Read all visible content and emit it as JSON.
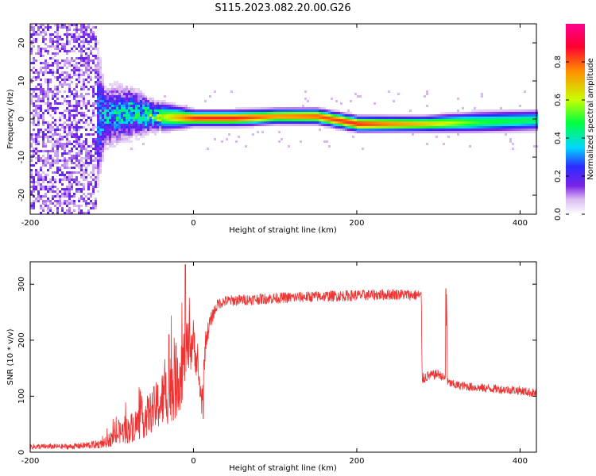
{
  "figure": {
    "title": "S115.2023.082.20.00.G26"
  },
  "chart_data": [
    {
      "type": "heatmap",
      "title": "",
      "xlabel": "Height of straight line (km)",
      "ylabel": "Frequency (Hz)",
      "xlim": [
        -200,
        420
      ],
      "ylim": [
        -25,
        25
      ],
      "xticks": [
        -200,
        0,
        200,
        400
      ],
      "yticks": [
        -20,
        -10,
        0,
        10,
        20
      ],
      "colorbar": {
        "label": "Normalized spectral amplitude",
        "range": [
          0,
          1
        ],
        "ticks": [
          "0.0",
          "0.2",
          "0.4",
          "0.6",
          "0.8"
        ],
        "colormap": "rainbow",
        "colors": [
          "#ffffff",
          "#d8b8f0",
          "#7a22e8",
          "#2c2cff",
          "#00e0ff",
          "#00ff00",
          "#e8ff00",
          "#ff8800",
          "#ff0030",
          "#ff00a0"
        ]
      },
      "description_points": [
        {
          "x": -200,
          "y_center": 0,
          "spread": 25,
          "amp": 0.2
        },
        {
          "x": -130,
          "y_center": 0,
          "spread": 25,
          "amp": 0.2
        },
        {
          "x": -110,
          "y_center": 1,
          "spread": 6,
          "amp": 0.35
        },
        {
          "x": -80,
          "y_center": 2,
          "spread": 5,
          "amp": 0.4
        },
        {
          "x": -50,
          "y_center": 1,
          "spread": 3,
          "amp": 0.5
        },
        {
          "x": 0,
          "y_center": 0.5,
          "spread": 1.5,
          "amp": 0.85
        },
        {
          "x": 50,
          "y_center": 0.5,
          "spread": 1.5,
          "amp": 0.85
        },
        {
          "x": 100,
          "y_center": 1,
          "spread": 1.5,
          "amp": 0.75
        },
        {
          "x": 150,
          "y_center": 1,
          "spread": 1.5,
          "amp": 0.8
        },
        {
          "x": 200,
          "y_center": -1,
          "spread": 1.5,
          "amp": 0.85
        },
        {
          "x": 280,
          "y_center": -1,
          "spread": 1.5,
          "amp": 0.7
        },
        {
          "x": 350,
          "y_center": -0.5,
          "spread": 2,
          "amp": 0.5
        },
        {
          "x": 420,
          "y_center": 0,
          "spread": 2,
          "amp": 0.45
        }
      ]
    },
    {
      "type": "line",
      "title": "",
      "xlabel": "Height of straight line (km)",
      "ylabel": "SNR (10 * v/v)",
      "xlim": [
        -200,
        420
      ],
      "ylim": [
        0,
        340
      ],
      "xticks": [
        -200,
        0,
        200,
        400
      ],
      "yticks": [
        0,
        100,
        200,
        300
      ],
      "series": [
        {
          "color": "#ee3333",
          "x": [
            -200,
            -150,
            -110,
            -100,
            -90,
            -80,
            -70,
            -60,
            -50,
            -40,
            -30,
            -20,
            -15,
            -10,
            -5,
            0,
            5,
            10,
            15,
            20,
            25,
            30,
            40,
            60,
            100,
            150,
            200,
            250,
            279,
            280,
            285,
            300,
            309,
            310,
            311,
            320,
            350,
            400,
            420
          ],
          "y": [
            10,
            10,
            15,
            25,
            35,
            40,
            50,
            60,
            75,
            90,
            110,
            130,
            150,
            170,
            185,
            200,
            150,
            90,
            200,
            230,
            250,
            265,
            270,
            272,
            275,
            278,
            280,
            282,
            280,
            130,
            135,
            140,
            130,
            290,
            125,
            120,
            115,
            110,
            105
          ],
          "noise_amplitude": [
            5,
            5,
            8,
            15,
            20,
            25,
            30,
            35,
            40,
            50,
            60,
            70,
            70,
            60,
            50,
            40,
            30,
            25,
            20,
            15,
            12,
            10,
            10,
            10,
            10,
            10,
            10,
            10,
            10,
            10,
            10,
            8,
            8,
            0,
            8,
            8,
            8,
            8,
            8
          ],
          "spikes": [
            {
              "x": -30,
              "y": 210
            },
            {
              "x": -10,
              "y": 335
            },
            {
              "x": 12,
              "y": 60
            },
            {
              "x": 309,
              "y": 292
            }
          ]
        }
      ]
    }
  ]
}
